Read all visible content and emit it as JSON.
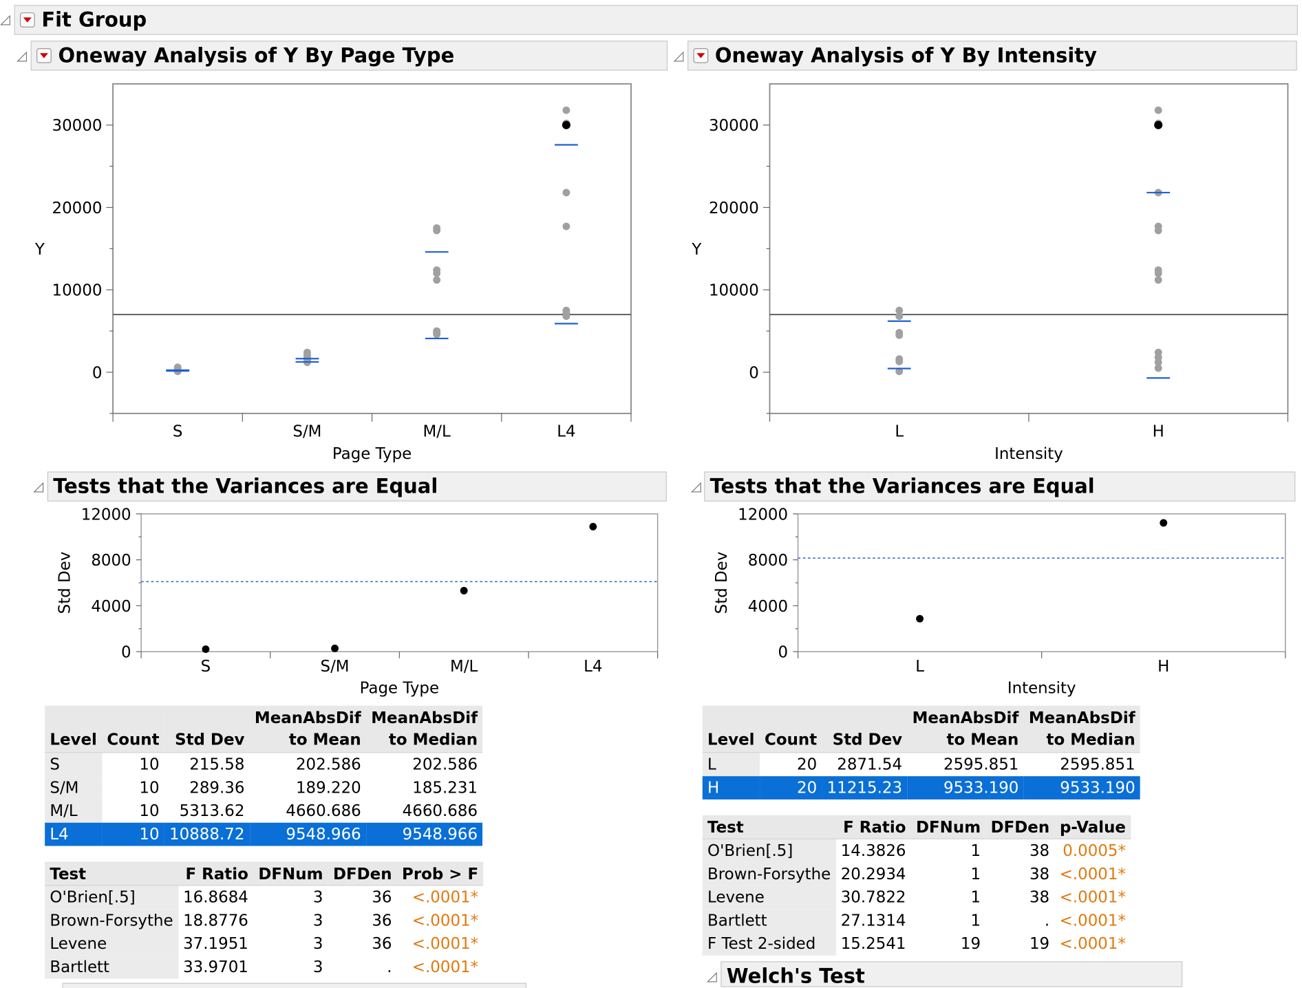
{
  "fit_group": {
    "title": "Fit Group"
  },
  "left": {
    "title": "Oneway Analysis of Y By Page Type",
    "plot": {
      "ylabel": "Y",
      "xlabel": "Page Type",
      "yticks": [
        "0",
        "10000",
        "20000",
        "30000"
      ],
      "categories": [
        "S",
        "S/M",
        "M/L",
        "L4"
      ]
    },
    "variances": {
      "title": "Tests that the Variances are Equal",
      "ylabel": "Std Dev",
      "xlabel": "Page Type",
      "yticks": [
        "0",
        "4000",
        "8000",
        "12000"
      ],
      "categories": [
        "S",
        "S/M",
        "M/L",
        "L4"
      ]
    },
    "level_table": {
      "headers": [
        [
          "",
          "Level"
        ],
        [
          "",
          "Count"
        ],
        [
          "",
          "Std Dev"
        ],
        [
          "MeanAbsDif",
          "to Mean"
        ],
        [
          "MeanAbsDif",
          "to Median"
        ]
      ],
      "rows": [
        [
          "S",
          "10",
          "215.58",
          "202.586",
          "202.586"
        ],
        [
          "S/M",
          "10",
          "289.36",
          "189.220",
          "185.231"
        ],
        [
          "M/L",
          "10",
          "5313.62",
          "4660.686",
          "4660.686"
        ],
        [
          "L4",
          "10",
          "10888.72",
          "9548.966",
          "9548.966"
        ]
      ],
      "selected_row": 3
    },
    "test_table": {
      "headers": [
        "Test",
        "F Ratio",
        "DFNum",
        "DFDen",
        "Prob > F"
      ],
      "rows": [
        [
          "O'Brien[.5]",
          "16.8684",
          "3",
          "36",
          "<.0001*"
        ],
        [
          "Brown-Forsythe",
          "18.8776",
          "3",
          "36",
          "<.0001*"
        ],
        [
          "Levene",
          "37.1951",
          "3",
          "36",
          "<.0001*"
        ],
        [
          "Bartlett",
          "33.9701",
          "3",
          ".",
          "<.0001*"
        ]
      ]
    }
  },
  "right": {
    "title": "Oneway Analysis of Y By Intensity",
    "plot": {
      "ylabel": "Y",
      "xlabel": "Intensity",
      "yticks": [
        "0",
        "10000",
        "20000",
        "30000"
      ],
      "categories": [
        "L",
        "H"
      ]
    },
    "variances": {
      "title": "Tests that the Variances are Equal",
      "ylabel": "Std Dev",
      "xlabel": "Intensity",
      "yticks": [
        "0",
        "4000",
        "8000",
        "12000"
      ],
      "categories": [
        "L",
        "H"
      ]
    },
    "level_table": {
      "headers": [
        [
          "",
          "Level"
        ],
        [
          "",
          "Count"
        ],
        [
          "",
          "Std Dev"
        ],
        [
          "MeanAbsDif",
          "to Mean"
        ],
        [
          "MeanAbsDif",
          "to Median"
        ]
      ],
      "rows": [
        [
          "L",
          "20",
          "2871.54",
          "2595.851",
          "2595.851"
        ],
        [
          "H",
          "20",
          "11215.23",
          "9533.190",
          "9533.190"
        ]
      ],
      "selected_row": 1
    },
    "test_table": {
      "headers": [
        "Test",
        "F Ratio",
        "DFNum",
        "DFDen",
        "p-Value"
      ],
      "rows": [
        [
          "O'Brien[.5]",
          "14.3826",
          "1",
          "38",
          "0.0005*"
        ],
        [
          "Brown-Forsythe",
          "20.2934",
          "1",
          "38",
          "<.0001*"
        ],
        [
          "Levene",
          "30.7822",
          "1",
          "38",
          "<.0001*"
        ],
        [
          "Bartlett",
          "27.1314",
          "1",
          ".",
          "<.0001*"
        ],
        [
          "F Test 2-sided",
          "15.2541",
          "19",
          "19",
          "<.0001*"
        ]
      ]
    },
    "welch": {
      "title": "Welch's Test"
    }
  },
  "colors": {
    "selected_row": "#0a6fd6",
    "mean_line": "#1f5fd6",
    "point_gray": "#a0a0a0",
    "p_value": "#e07a10"
  },
  "chart_data": [
    {
      "type": "scatter",
      "title": "Oneway Analysis of Y By Page Type",
      "xlabel": "Page Type",
      "ylabel": "Y",
      "ylim": [
        -5000,
        35000
      ],
      "categories": [
        "S",
        "S/M",
        "M/L",
        "L4"
      ],
      "points": {
        "S": [
          100,
          200,
          300,
          400,
          500,
          600
        ],
        "S/M": [
          1200,
          1400,
          1600,
          1800,
          2100,
          2400
        ],
        "M/L": [
          4600,
          4800,
          5000,
          11200,
          12000,
          12400,
          17200,
          17500
        ],
        "L4": [
          6800,
          7200,
          7500,
          17700,
          21800,
          30200,
          31800
        ]
      },
      "highlighted_point": {
        "category": "L4",
        "value": 30000
      },
      "group_means": [
        250,
        1650,
        14600,
        27600
      ],
      "group_lower_lines": [
        150,
        1250,
        4100,
        5900
      ],
      "grand_mean": 7000
    },
    {
      "type": "scatter",
      "title": "Oneway Analysis of Y By Intensity",
      "xlabel": "Intensity",
      "ylabel": "Y",
      "ylim": [
        -5000,
        35000
      ],
      "categories": [
        "L",
        "H"
      ],
      "points": {
        "L": [
          100,
          1300,
          1600,
          4500,
          4800,
          6800,
          7500
        ],
        "H": [
          500,
          1200,
          1800,
          2400,
          11200,
          12000,
          12400,
          17200,
          17700,
          21800,
          30200,
          31800
        ]
      },
      "highlighted_point": {
        "category": "H",
        "value": 30000
      },
      "group_means": [
        6200,
        21800
      ],
      "group_lower_lines": [
        450,
        -700
      ],
      "grand_mean": 7000
    },
    {
      "type": "scatter",
      "title": "Tests that the Variances are Equal",
      "xlabel": "Page Type",
      "ylabel": "Std Dev",
      "ylim": [
        0,
        12000
      ],
      "categories": [
        "S",
        "S/M",
        "M/L",
        "L4"
      ],
      "values": [
        215.58,
        289.36,
        5313.62,
        10888.72
      ],
      "reference_line": 6100
    },
    {
      "type": "scatter",
      "title": "Tests that the Variances are Equal",
      "xlabel": "Intensity",
      "ylabel": "Std Dev",
      "ylim": [
        0,
        12000
      ],
      "categories": [
        "L",
        "H"
      ],
      "values": [
        2871.54,
        11215.23
      ],
      "reference_line": 8150
    }
  ]
}
